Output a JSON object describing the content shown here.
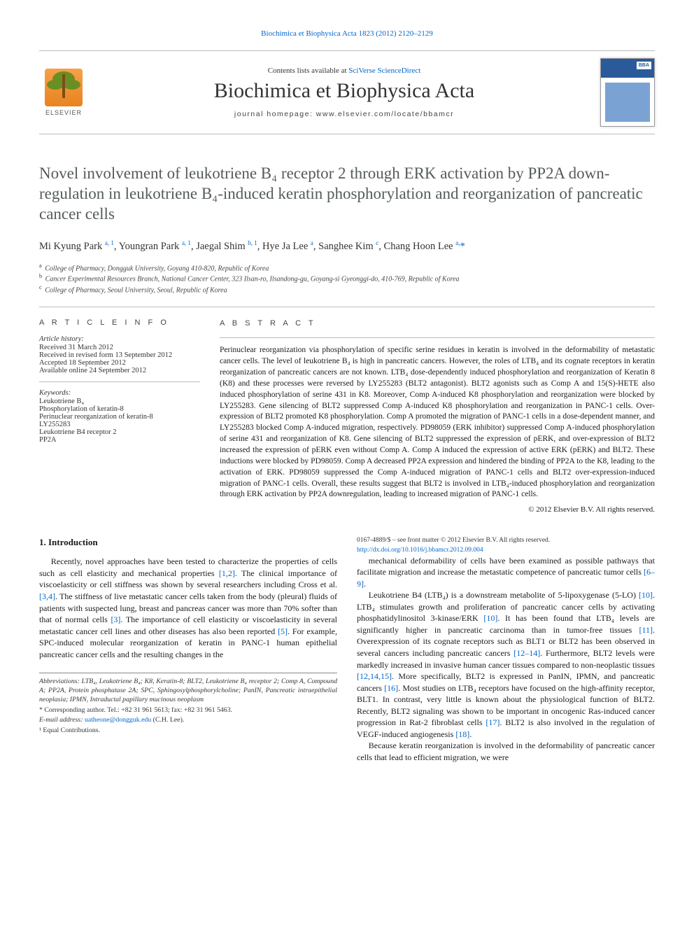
{
  "top_citation": "Biochimica et Biophysica Acta 1823 (2012) 2120–2129",
  "masthead": {
    "contents_prefix": "Contents lists available at ",
    "contents_link": "SciVerse ScienceDirect",
    "journal": "Biochimica et Biophysica Acta",
    "homepage": "journal homepage: www.elsevier.com/locate/bbamcr",
    "elsevier": "ELSEVIER",
    "bba_label": "BBA"
  },
  "title_html": "Novel involvement of leukotriene B₄ receptor 2 through ERK activation by PP2A down-regulation in leukotriene B₄-induced keratin phosphorylation and reorganization of pancreatic cancer cells",
  "authors_line": "Mi Kyung Park <sup class='affsup'>a, 1</sup>, Youngran Park <sup class='affsup'>a, 1</sup>, Jaegal Shim <sup class='affsup'>b, 1</sup>, Hye Ja Lee <sup class='affsup'>a</sup>, Sanghee Kim <sup class='affsup'>c</sup>, Chang Hoon Lee <sup class='affsup'>a,</sup><span class='star'>*</span>",
  "affiliations": [
    {
      "sup": "a",
      "text": "College of Pharmacy, Dongguk University, Goyang 410-820, Republic of Korea"
    },
    {
      "sup": "b",
      "text": "Cancer Experimental Resources Branch, National Cancer Center, 323 Ilsan-ro, Ilsandong-gu, Goyang-si Gyeonggi-do, 410-769, Republic of Korea"
    },
    {
      "sup": "c",
      "text": "College of Pharmacy, Seoul University, Seoul, Republic of Korea"
    }
  ],
  "article_info_label": "A R T I C L E   I N F O",
  "abstract_label": "A B S T R A C T",
  "history": {
    "hdr": "Article history:",
    "lines": [
      "Received 31 March 2012",
      "Received in revised form 13 September 2012",
      "Accepted 18 September 2012",
      "Available online 24 September 2012"
    ]
  },
  "keywords": {
    "hdr": "Keywords:",
    "items": [
      "Leukotriene B₄",
      "Phosphorylation of keratin-8",
      "Perinuclear reorganization of keratin-8",
      "LY255283",
      "Leukotriene B4 receptor 2",
      "PP2A"
    ]
  },
  "abstract": "Perinuclear reorganization via phosphorylation of specific serine residues in keratin is involved in the deformability of metastatic cancer cells. The level of leukotriene B₄ is high in pancreatic cancers. However, the roles of LTB₄ and its cognate receptors in keratin reorganization of pancreatic cancers are not known. LTB₄ dose-dependently induced phosphorylation and reorganization of Keratin 8 (K8) and these processes were reversed by LY255283 (BLT2 antagonist). BLT2 agonists such as Comp A and 15(S)-HETE also induced phosphorylation of serine 431 in K8. Moreover, Comp A-induced K8 phosphorylation and reorganization were blocked by LY255283. Gene silencing of BLT2 suppressed Comp A-induced K8 phosphorylation and reorganization in PANC-1 cells. Over-expression of BLT2 promoted K8 phosphorylation. Comp A promoted the migration of PANC-1 cells in a dose-dependent manner, and LY255283 blocked Comp A-induced migration, respectively. PD98059 (ERK inhibitor) suppressed Comp A-induced phosphorylation of serine 431 and reorganization of K8. Gene silencing of BLT2 suppressed the expression of pERK, and over-expression of BLT2 increased the expression of pERK even without Comp A. Comp A induced the expression of active ERK (pERK) and BLT2. These inductions were blocked by PD98059. Comp A decreased PP2A expression and hindered the binding of PP2A to the K8, leading to the activation of ERK. PD98059 suppressed the Comp A-induced migration of PANC-1 cells and BLT2 over-expression-induced migration of PANC-1 cells. Overall, these results suggest that BLT2 is involved in LTB₄-induced phosphorylation and reorganization through ERK activation by PP2A downregulation, leading to increased migration of PANC-1 cells.",
  "copyright": "© 2012 Elsevier B.V. All rights reserved.",
  "intro_heading": "1. Introduction",
  "intro_p1": "Recently, novel approaches have been tested to characterize the properties of cells such as cell elasticity and mechanical properties <span class='cite'>[1,2]</span>. The clinical importance of viscoelasticity or cell stiffness was shown by several researchers including Cross et al. <span class='cite'>[3,4]</span>. The stiffness of live metastatic cancer cells taken from the body (pleural) fluids of patients with suspected lung, breast and pancreas cancer was more than 70% softer than that of normal cells <span class='cite'>[3]</span>. The importance of cell elasticity or viscoelasticity in several metastatic cancer cell lines and other diseases has also been reported <span class='cite'>[5]</span>. For example, SPC-induced molecular reorganization of keratin in PANC-1 human epithelial pancreatic cancer cells and the resulting changes in the",
  "intro_p2": "mechanical deformability of cells have been examined as possible pathways that facilitate migration and increase the metastatic competence of pancreatic tumor cells <span class='cite'>[6–9]</span>.",
  "intro_p3": "Leukotriene B4 (LTB₄) is a downstream metabolite of 5-lipoxygenase (5-LO) <span class='cite'>[10]</span>. LTB₄ stimulates growth and proliferation of pancreatic cancer cells by activating phosphatidylinositol 3-kinase/ERK <span class='cite'>[10]</span>. It has been found that LTB₄ levels are significantly higher in pancreatic carcinoma than in tumor-free tissues <span class='cite'>[11]</span>. Overexpression of its cognate receptors such as BLT1 or BLT2 has been observed in several cancers including pancreatic cancers <span class='cite'>[12–14]</span>. Furthermore, BLT2 levels were markedly increased in invasive human cancer tissues compared to non-neoplastic tissues <span class='cite'>[12,14,15]</span>. More specifically, BLT2 is expressed in PanIN, IPMN, and pancreatic cancers <span class='cite'>[16]</span>. Most studies on LTB₄ receptors have focused on the high-affinity receptor, BLT1. In contrast, very little is known about the physiological function of BLT2. Recently, BLT2 signaling was shown to be important in oncogenic Ras-induced cancer progression in Rat-2 fibroblast cells <span class='cite'>[17]</span>. BLT2 is also involved in the regulation of VEGF-induced angiogenesis <span class='cite'>[18]</span>.",
  "intro_p4": "Because keratin reorganization is involved in the deformability of pancreatic cancer cells that lead to efficient migration, we were",
  "footnotes": {
    "abbrev": "Abbreviations: LTB₄, Leukotriene B₄; K8, Keratin-8; BLT2, Leukotriene B₄ receptor 2; Comp A, Compound A; PP2A, Protein phosphatase 2A; SPC, Sphingosylphosphorylcholine; PanIN, Pancreatic intraepithelial neoplasia; IPMN, Intraductal papillary mucinous neoplasm",
    "corr": "* Corresponding author. Tel.: +82 31 961 5613; fax: +82 31 961 5463.",
    "email_lbl": "E-mail address: ",
    "email": "uatheone@dongguk.edu",
    "email_sfx": " (C.H. Lee).",
    "equal": "¹ Equal Contributions."
  },
  "issn": {
    "line1": "0167-4889/$ – see front matter © 2012 Elsevier B.V. All rights reserved.",
    "doi": "http://dx.doi.org/10.1016/j.bbamcr.2012.09.004"
  },
  "colors": {
    "link": "#0066cc",
    "title": "#555b5b",
    "rule": "#bbbbbb"
  }
}
